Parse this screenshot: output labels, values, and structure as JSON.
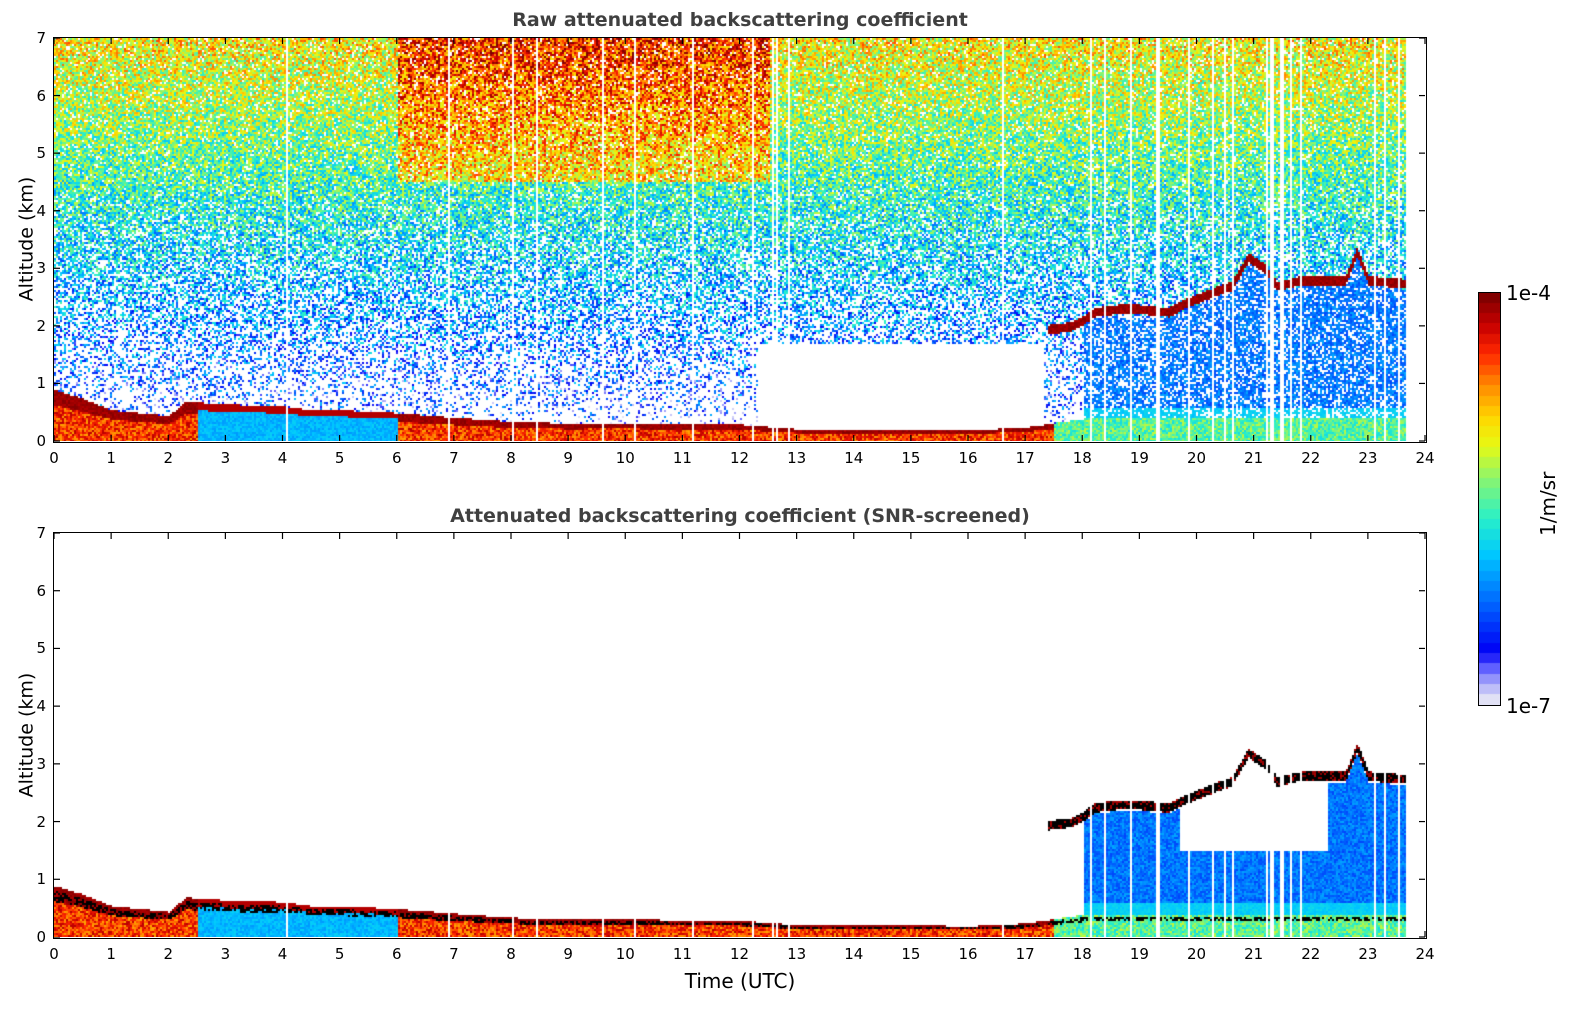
{
  "chart_data": [
    {
      "type": "heatmap",
      "title": "Raw attenuated backscattering coefficient",
      "xlabel": "",
      "ylabel": "Altitude (km)",
      "xlim": [
        0,
        24
      ],
      "ylim": [
        0,
        7
      ],
      "xticks": [
        "0",
        "1",
        "2",
        "3",
        "4",
        "5",
        "6",
        "7",
        "8",
        "9",
        "10",
        "11",
        "12",
        "13",
        "14",
        "15",
        "16",
        "17",
        "18",
        "19",
        "20",
        "21",
        "22",
        "23",
        "24"
      ],
      "yticks": [
        "0",
        "1",
        "2",
        "3",
        "4",
        "5",
        "6",
        "7"
      ],
      "data_end_time": 23.65,
      "boundary_layer_top_km": [
        [
          0,
          0.9
        ],
        [
          0.5,
          0.75
        ],
        [
          1,
          0.55
        ],
        [
          2,
          0.45
        ],
        [
          2.3,
          0.7
        ],
        [
          3,
          0.65
        ],
        [
          4,
          0.62
        ],
        [
          4.5,
          0.55
        ],
        [
          5,
          0.55
        ],
        [
          6,
          0.5
        ],
        [
          7,
          0.42
        ],
        [
          8,
          0.35
        ],
        [
          9,
          0.32
        ],
        [
          10,
          0.33
        ],
        [
          11,
          0.3
        ],
        [
          12,
          0.3
        ],
        [
          13,
          0.22
        ],
        [
          14,
          0.22
        ],
        [
          15,
          0.22
        ],
        [
          16,
          0.2
        ],
        [
          17,
          0.25
        ],
        [
          18,
          0.4
        ]
      ],
      "cloud_layer_km": [
        [
          17.4,
          1.95
        ],
        [
          17.8,
          2.0
        ],
        [
          18.0,
          2.1
        ],
        [
          18.2,
          2.25
        ],
        [
          18.6,
          2.3
        ],
        [
          19.0,
          2.3
        ],
        [
          19.5,
          2.25
        ],
        [
          19.8,
          2.4
        ],
        [
          20.3,
          2.6
        ],
        [
          20.6,
          2.7
        ],
        [
          20.9,
          3.2
        ],
        [
          21.2,
          3.0
        ],
        [
          21.4,
          2.7
        ],
        [
          21.8,
          2.8
        ],
        [
          22.3,
          2.8
        ],
        [
          22.6,
          2.8
        ],
        [
          22.8,
          3.3
        ],
        [
          23.0,
          2.8
        ],
        [
          23.6,
          2.75
        ]
      ],
      "clear_sky_gap_hours": [
        12.3,
        17.3
      ],
      "high_noise_region_hours": [
        6,
        12.5
      ],
      "colorbar": {
        "min_label": "1e-7",
        "max_label": "1e-4",
        "unit": "1/m/sr",
        "scale": "log"
      }
    },
    {
      "type": "heatmap",
      "title": "Attenuated backscattering coefficient (SNR-screened)",
      "xlabel": "Time (UTC)",
      "ylabel": "Altitude (km)",
      "xlim": [
        0,
        24
      ],
      "ylim": [
        0,
        7
      ],
      "xticks": [
        "0",
        "1",
        "2",
        "3",
        "4",
        "5",
        "6",
        "7",
        "8",
        "9",
        "10",
        "11",
        "12",
        "13",
        "14",
        "15",
        "16",
        "17",
        "18",
        "19",
        "20",
        "21",
        "22",
        "23",
        "24"
      ],
      "yticks": [
        "0",
        "1",
        "2",
        "3",
        "4",
        "5",
        "6",
        "7"
      ],
      "data_end_time": 23.65,
      "screened": true,
      "clear_region_km": [
        1.5,
        3.2
      ],
      "clear_region_hours": [
        19.7,
        22.3
      ]
    }
  ],
  "colorbar": {
    "max_label": "1e-4",
    "min_label": "1e-7",
    "unit_label": "1/m/sr"
  },
  "colors": {
    "title": "#404040",
    "saturation_black": "#000000"
  }
}
